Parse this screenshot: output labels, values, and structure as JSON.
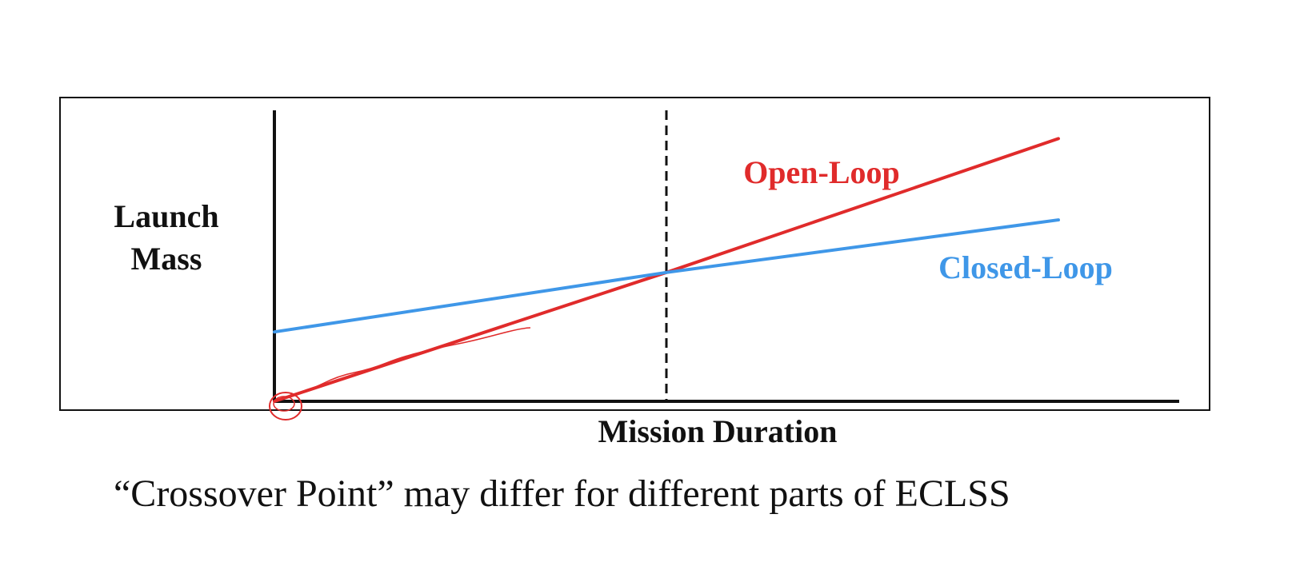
{
  "caption": "“Crossover Point” may differ for different parts of ECLSS",
  "chart_data": {
    "type": "line",
    "xlabel": "Mission Duration",
    "ylabel_lines": [
      "Launch",
      "Mass"
    ],
    "x": [
      0,
      1,
      2
    ],
    "xlim": [
      0,
      2.3
    ],
    "ylim": [
      0,
      3
    ],
    "series": [
      {
        "name": "Open-Loop",
        "color": "#e02b2b",
        "values": [
          0,
          1.3,
          2.65
        ]
      },
      {
        "name": "Closed-Loop",
        "color": "#3f97e8",
        "values": [
          0.7,
          1.3,
          1.83
        ]
      }
    ],
    "crossover_x": 1,
    "crossover_line_style": "dashed",
    "annotations": [
      "Open-Loop",
      "Closed-Loop"
    ],
    "grid": false,
    "legend": "none (inline labels)"
  },
  "colors": {
    "axis": "#111111",
    "frame": "#111111",
    "open_loop": "#e02b2b",
    "closed_loop": "#3f97e8"
  }
}
